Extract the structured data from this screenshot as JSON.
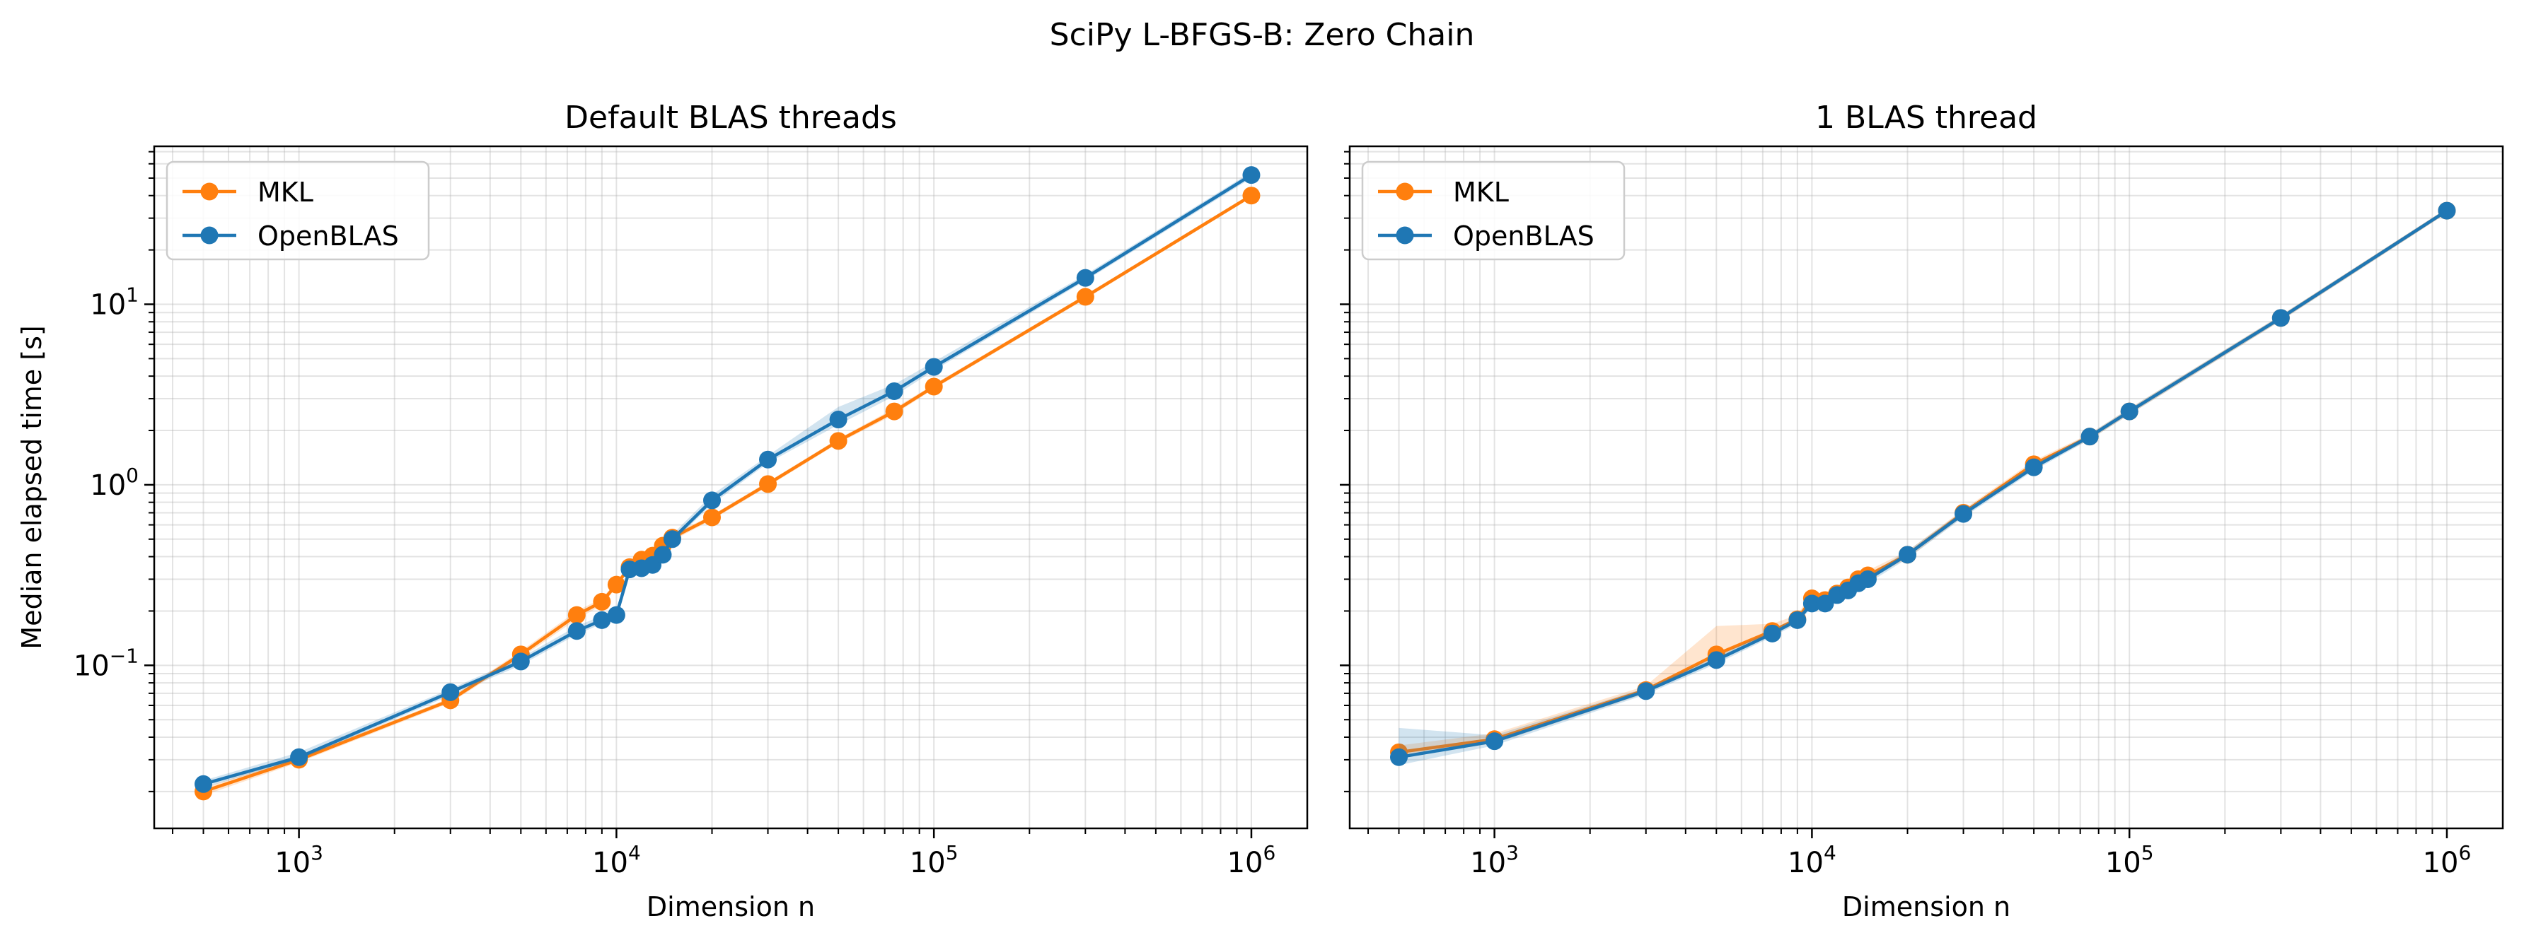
{
  "figure": {
    "suptitle": "SciPy L-BFGS-B: Zero Chain"
  },
  "colors": {
    "MKL": "#ff7f0e",
    "OpenBLAS": "#1f77b4",
    "grid": "#b0b0b0"
  },
  "chart_data": [
    {
      "type": "line",
      "title": "Default BLAS threads",
      "xlabel": "Dimension n",
      "ylabel": "Median elapsed time [s]",
      "xscale": "log",
      "yscale": "log",
      "xlim": [
        350,
        1500000
      ],
      "ylim": [
        0.0125,
        75
      ],
      "xticks": [
        {
          "base": "10",
          "exp": "3"
        },
        {
          "base": "10",
          "exp": "4"
        },
        {
          "base": "10",
          "exp": "5"
        },
        {
          "base": "10",
          "exp": "6"
        }
      ],
      "yticks": [
        {
          "base": "10",
          "exp": "−1"
        },
        {
          "base": "10",
          "exp": "0"
        },
        {
          "base": "10",
          "exp": "1"
        }
      ],
      "grid": "major and minor",
      "legend": {
        "placement": "upper-left",
        "entries": [
          "MKL",
          "OpenBLAS"
        ]
      },
      "series": [
        {
          "name": "MKL",
          "x": [
            500,
            1000,
            3000,
            5000,
            7500,
            9000,
            10000,
            11000,
            12000,
            13000,
            14000,
            15000,
            20000,
            30000,
            50000,
            75000,
            100000,
            300000,
            1000000
          ],
          "y": [
            0.02,
            0.03,
            0.064,
            0.115,
            0.19,
            0.225,
            0.28,
            0.35,
            0.385,
            0.405,
            0.46,
            0.51,
            0.66,
            1.01,
            1.75,
            2.55,
            3.5,
            11.0,
            40.0
          ],
          "band_low": [
            0.019,
            0.029,
            0.062,
            0.11,
            0.18,
            0.215,
            0.27,
            0.34,
            0.37,
            0.39,
            0.44,
            0.49,
            0.64,
            0.98,
            1.7,
            2.45,
            3.4,
            10.7,
            39.0
          ],
          "band_high": [
            0.021,
            0.031,
            0.066,
            0.12,
            0.2,
            0.235,
            0.29,
            0.36,
            0.4,
            0.42,
            0.48,
            0.53,
            0.68,
            1.04,
            1.8,
            2.65,
            3.6,
            11.3,
            41.0
          ]
        },
        {
          "name": "OpenBLAS",
          "x": [
            500,
            1000,
            3000,
            5000,
            7500,
            9000,
            10000,
            11000,
            12000,
            13000,
            14000,
            15000,
            20000,
            30000,
            50000,
            75000,
            100000,
            300000,
            1000000
          ],
          "y": [
            0.022,
            0.031,
            0.071,
            0.105,
            0.155,
            0.178,
            0.19,
            0.34,
            0.345,
            0.36,
            0.41,
            0.5,
            0.82,
            1.38,
            2.3,
            3.3,
            4.5,
            14.0,
            52.0
          ],
          "band_low": [
            0.021,
            0.03,
            0.068,
            0.1,
            0.148,
            0.17,
            0.18,
            0.32,
            0.33,
            0.34,
            0.39,
            0.48,
            0.78,
            1.32,
            2.15,
            3.1,
            4.3,
            13.5,
            50.0
          ],
          "band_high": [
            0.023,
            0.033,
            0.074,
            0.11,
            0.165,
            0.188,
            0.205,
            0.36,
            0.37,
            0.38,
            0.43,
            0.53,
            0.88,
            1.45,
            2.7,
            3.6,
            4.8,
            14.6,
            54.0
          ]
        }
      ]
    },
    {
      "type": "line",
      "title": "1 BLAS thread",
      "xlabel": "Dimension n",
      "ylabel": "",
      "xscale": "log",
      "yscale": "log",
      "xlim": [
        350,
        1500000
      ],
      "ylim": [
        0.0125,
        75
      ],
      "xticks": [
        {
          "base": "10",
          "exp": "3"
        },
        {
          "base": "10",
          "exp": "4"
        },
        {
          "base": "10",
          "exp": "5"
        },
        {
          "base": "10",
          "exp": "6"
        }
      ],
      "yticks": [],
      "grid": "major and minor",
      "legend": {
        "placement": "upper-left",
        "entries": [
          "MKL",
          "OpenBLAS"
        ]
      },
      "series": [
        {
          "name": "MKL",
          "x": [
            500,
            1000,
            3000,
            5000,
            7500,
            9000,
            10000,
            11000,
            12000,
            13000,
            14000,
            15000,
            20000,
            30000,
            50000,
            75000,
            100000,
            300000,
            1000000
          ],
          "y": [
            0.033,
            0.039,
            0.073,
            0.115,
            0.155,
            0.18,
            0.235,
            0.23,
            0.25,
            0.27,
            0.3,
            0.315,
            0.41,
            0.7,
            1.3,
            1.85,
            2.55,
            8.4,
            33.0
          ],
          "band_low": [
            0.031,
            0.037,
            0.07,
            0.108,
            0.148,
            0.172,
            0.22,
            0.21,
            0.235,
            0.255,
            0.285,
            0.3,
            0.39,
            0.67,
            1.24,
            1.78,
            2.45,
            8.1,
            32.0
          ],
          "band_high": [
            0.036,
            0.042,
            0.077,
            0.165,
            0.17,
            0.19,
            0.255,
            0.25,
            0.27,
            0.29,
            0.32,
            0.335,
            0.43,
            0.73,
            1.36,
            1.92,
            2.65,
            8.7,
            34.0
          ]
        },
        {
          "name": "OpenBLAS",
          "x": [
            500,
            1000,
            3000,
            5000,
            7500,
            9000,
            10000,
            11000,
            12000,
            13000,
            14000,
            15000,
            20000,
            30000,
            50000,
            75000,
            100000,
            300000,
            1000000
          ],
          "y": [
            0.031,
            0.038,
            0.072,
            0.107,
            0.15,
            0.178,
            0.22,
            0.22,
            0.245,
            0.26,
            0.285,
            0.3,
            0.41,
            0.69,
            1.25,
            1.85,
            2.55,
            8.4,
            33.0
          ],
          "band_low": [
            0.028,
            0.036,
            0.069,
            0.102,
            0.144,
            0.17,
            0.21,
            0.21,
            0.233,
            0.248,
            0.27,
            0.285,
            0.39,
            0.66,
            1.2,
            1.78,
            2.45,
            8.1,
            32.0
          ],
          "band_high": [
            0.045,
            0.041,
            0.075,
            0.112,
            0.157,
            0.186,
            0.235,
            0.235,
            0.26,
            0.29,
            0.3,
            0.315,
            0.43,
            0.72,
            1.3,
            1.92,
            2.65,
            8.7,
            34.0
          ]
        }
      ]
    }
  ]
}
